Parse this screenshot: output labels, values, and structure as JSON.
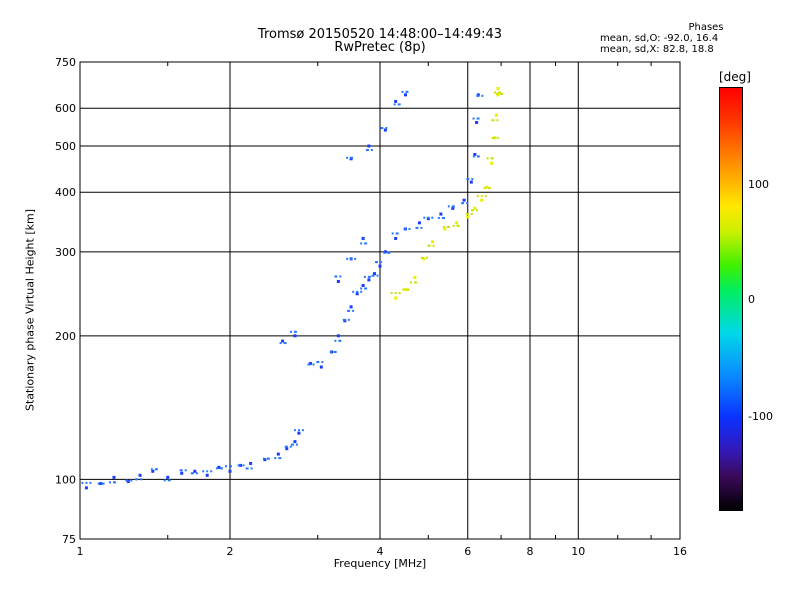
{
  "header": {
    "title_line1": "Tromsø 20150520 14:48:00–14:49:43",
    "title_line2": "RwPretec (8p)"
  },
  "stats": {
    "heading": "Phases",
    "line_o": "mean, sd,O: -92.0, 16.4",
    "line_x": "mean, sd,X:  82.8, 18.8"
  },
  "colorbar": {
    "unit": "[deg]",
    "range": [
      -180,
      180
    ],
    "ticks": [
      "100",
      "0",
      "-100"
    ],
    "tick_values": [
      100,
      0,
      -100
    ]
  },
  "chart_data": {
    "type": "scatter",
    "xlabel": "Frequency [MHz]",
    "ylabel": "Stationary phase Virtual Height [km]",
    "x_scale": "log",
    "y_scale": "log",
    "xlim": [
      1,
      16
    ],
    "ylim": [
      75,
      750
    ],
    "x_ticks": [
      1,
      2,
      4,
      6,
      8,
      10,
      16
    ],
    "x_tick_labels": [
      "1",
      "2",
      "4",
      "6",
      "8",
      "10",
      "16"
    ],
    "y_ticks": [
      75,
      100,
      200,
      300,
      400,
      500,
      600,
      750
    ],
    "y_tick_labels": [
      "75",
      "100",
      "200",
      "300",
      "400",
      "500",
      "600",
      "750"
    ],
    "grid": true,
    "colors": {
      "o_mode": "#1a3cff",
      "o_mode_light": "#2878ff",
      "x_mode": "#e8f000",
      "x_mode_dark": "#c8e000"
    },
    "series": [
      {
        "points": [
          [
            1.03,
            96
          ],
          [
            1.1,
            98
          ],
          [
            1.17,
            101
          ],
          [
            1.25,
            99
          ],
          [
            1.32,
            102
          ],
          [
            1.4,
            104
          ],
          [
            1.5,
            101
          ],
          [
            1.6,
            103
          ],
          [
            1.7,
            104
          ],
          [
            1.8,
            102
          ],
          [
            1.9,
            106
          ],
          [
            2.0,
            104
          ],
          [
            2.1,
            107
          ],
          [
            2.2,
            108
          ],
          [
            2.35,
            110
          ],
          [
            2.5,
            113
          ],
          [
            2.6,
            116
          ],
          [
            2.7,
            120
          ],
          [
            2.75,
            125
          ],
          [
            2.55,
            195
          ],
          [
            2.7,
            200
          ],
          [
            2.9,
            175
          ],
          [
            3.05,
            172
          ],
          [
            3.2,
            185
          ],
          [
            3.3,
            200
          ],
          [
            3.4,
            215
          ],
          [
            3.5,
            230
          ],
          [
            3.6,
            245
          ],
          [
            3.7,
            255
          ],
          [
            3.8,
            262
          ],
          [
            3.9,
            270
          ],
          [
            4.0,
            280
          ],
          [
            4.1,
            300
          ],
          [
            4.3,
            320
          ],
          [
            4.5,
            335
          ],
          [
            4.8,
            345
          ],
          [
            5.0,
            352
          ],
          [
            5.3,
            360
          ],
          [
            5.6,
            370
          ],
          [
            5.9,
            385
          ],
          [
            6.1,
            420
          ],
          [
            6.2,
            480
          ],
          [
            6.25,
            560
          ],
          [
            6.3,
            640
          ],
          [
            3.3,
            260
          ],
          [
            3.5,
            290
          ],
          [
            3.7,
            320
          ],
          [
            3.5,
            470
          ],
          [
            3.8,
            500
          ],
          [
            4.1,
            540
          ],
          [
            4.3,
            620
          ],
          [
            4.5,
            640
          ]
        ]
      },
      {
        "points": [
          [
            4.3,
            240
          ],
          [
            4.5,
            250
          ],
          [
            4.7,
            265
          ],
          [
            4.9,
            290
          ],
          [
            5.1,
            315
          ],
          [
            5.4,
            335
          ],
          [
            5.7,
            345
          ],
          [
            6.0,
            355
          ],
          [
            6.2,
            370
          ],
          [
            6.4,
            385
          ],
          [
            6.55,
            410
          ],
          [
            6.7,
            460
          ],
          [
            6.8,
            520
          ],
          [
            6.85,
            580
          ],
          [
            6.9,
            640
          ],
          [
            6.9,
            660
          ]
        ]
      }
    ]
  }
}
